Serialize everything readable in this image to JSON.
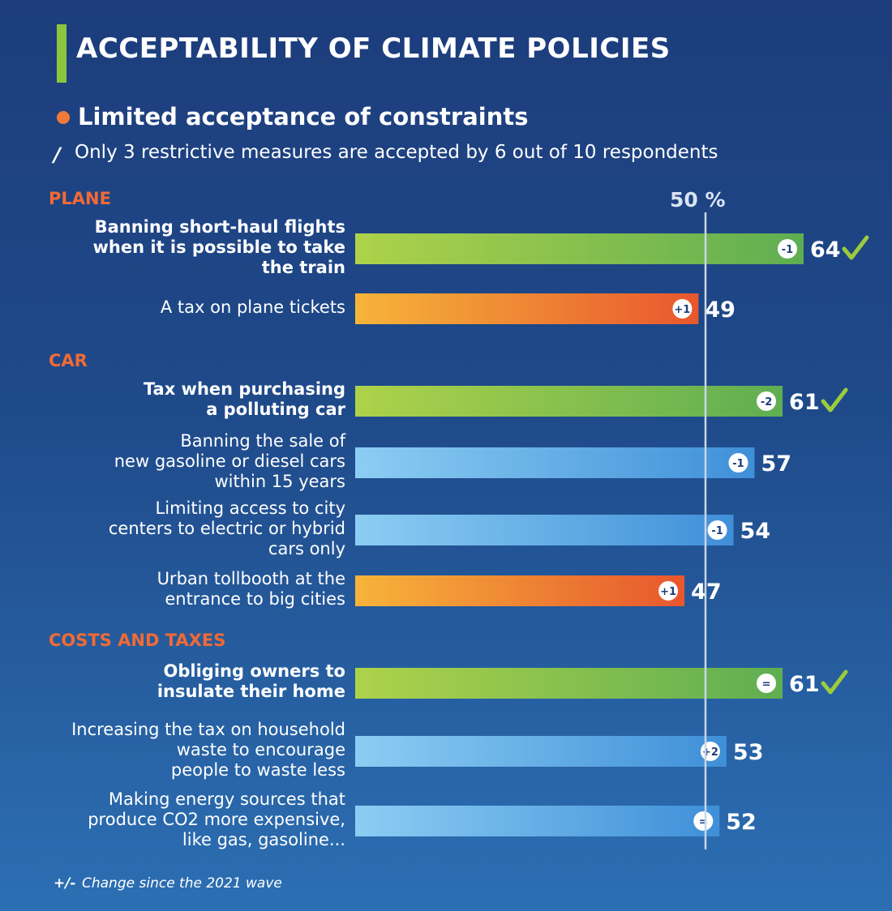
{
  "header": {
    "title": "ACCEPTABILITY OF CLIMATE POLICIES",
    "subtitle": "Limited acceptance of constraints",
    "note_marker": "/",
    "note": "Only 3 restrictive measures are accepted by 6 out of 10 respondents"
  },
  "footer": {
    "sign": "+/-",
    "text": "Change since the 2021 wave"
  },
  "colors": {
    "title_bar": "#8cc63f",
    "bullet": "#f07a3a",
    "section": "#f26a35",
    "check": "#9ccc3c",
    "ref_line": "#c9d6e8"
  },
  "chart_data": {
    "type": "bar",
    "orientation": "horizontal",
    "reference_line": {
      "value": 50,
      "label": "50 %"
    },
    "xlim": [
      0,
      76
    ],
    "sections": [
      {
        "name": "PLANE",
        "start_index": 0
      },
      {
        "name": "CAR",
        "start_index": 2
      },
      {
        "name": "COSTS AND TAXES",
        "start_index": 6
      }
    ],
    "items": [
      {
        "label": "Banning short-haul flights\nwhen it is possible to take\nthe train",
        "value": 64,
        "change": "-1",
        "color": "green",
        "accepted": true,
        "bold": true
      },
      {
        "label": "A tax on plane tickets",
        "value": 49,
        "change": "+1",
        "color": "orange",
        "accepted": false,
        "bold": false
      },
      {
        "label": "Tax when purchasing\na polluting car",
        "value": 61,
        "change": "-2",
        "color": "green",
        "accepted": true,
        "bold": true
      },
      {
        "label": "Banning the sale of\nnew gasoline or diesel cars\nwithin 15 years",
        "value": 57,
        "change": "-1",
        "color": "blue",
        "accepted": false,
        "bold": false
      },
      {
        "label": "Limiting access to city\ncenters to electric or hybrid\ncars only",
        "value": 54,
        "change": "-1",
        "color": "blue",
        "accepted": false,
        "bold": false
      },
      {
        "label": "Urban tollbooth at the\nentrance to big cities",
        "value": 47,
        "change": "+1",
        "color": "orange",
        "accepted": false,
        "bold": false
      },
      {
        "label": "Obliging owners to\ninsulate their home",
        "value": 61,
        "change": "=",
        "color": "green",
        "accepted": true,
        "bold": true
      },
      {
        "label": "Increasing the tax on household\nwaste to encourage\npeople to waste less",
        "value": 53,
        "change": "+2",
        "color": "blue",
        "accepted": false,
        "bold": false
      },
      {
        "label": "Making energy sources that\nproduce CO2 more expensive,\nlike gas, gasoline...",
        "value": 52,
        "change": "=",
        "color": "blue",
        "accepted": false,
        "bold": false
      }
    ]
  }
}
